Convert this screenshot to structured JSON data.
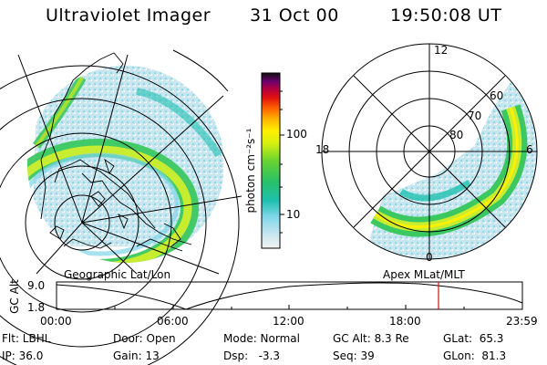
{
  "header": {
    "instrument": "Ultraviolet Imager",
    "date": "31 Oct 00",
    "time": "19:50:08 UT"
  },
  "colorbar": {
    "unit_label": "photon cm⁻²s⁻¹",
    "tick_high": "100",
    "tick_low": "10"
  },
  "polar": {
    "mlt_top": "12",
    "mlt_left": "18",
    "mlt_right": "6",
    "mlt_bottom": "0",
    "lat_60": "60",
    "lat_70": "70",
    "lat_80": "80"
  },
  "panels": {
    "left_title": "Geographic Lat/Lon",
    "right_title": "Apex MLat/MLT"
  },
  "altitude_plot": {
    "ylabel": "GC Alt",
    "y_top": "9.0",
    "y_bottom": "1.8",
    "x_ticks": [
      "00:00",
      "06:00",
      "12:00",
      "18:00",
      "23:59"
    ]
  },
  "info": {
    "flt": "Flt: LBHL",
    "ip": "IP: 36.0",
    "door": "Door: Open",
    "gain": "Gain: 13",
    "mode": "Mode: Normal",
    "dsp": "Dsp:   -3.3",
    "gcalt": "GC Alt: 8.3 Re",
    "seq": "Seq: 39",
    "glat": "GLat:  65.3",
    "glon": "GLon:  81.3"
  },
  "colors": {
    "marker": "#d01010"
  }
}
